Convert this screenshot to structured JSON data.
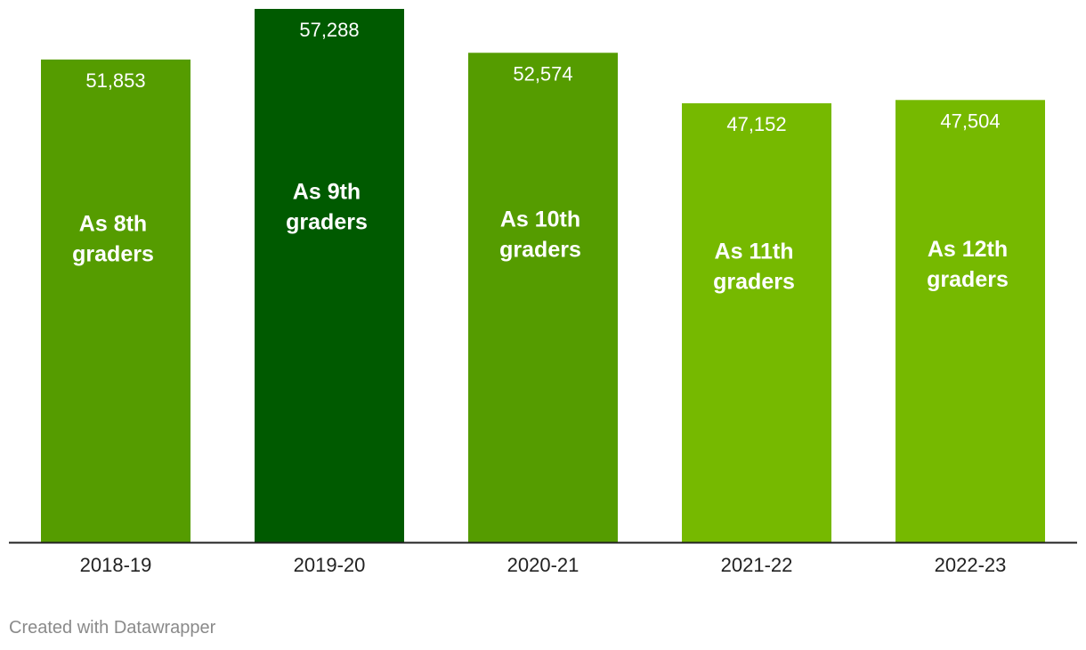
{
  "chart_data": {
    "type": "bar",
    "title": "",
    "xlabel": "",
    "ylabel": "",
    "categories": [
      "2018-19",
      "2019-20",
      "2020-21",
      "2021-22",
      "2022-23"
    ],
    "values": [
      51853,
      57288,
      52574,
      47152,
      47504
    ],
    "value_labels": [
      "51,853",
      "57,288",
      "52,574",
      "47,152",
      "47,504"
    ],
    "annotations": [
      [
        "As 8th",
        "graders"
      ],
      [
        "As 9th",
        "graders"
      ],
      [
        "As 10th",
        "graders"
      ],
      [
        "As 11th",
        "graders"
      ],
      [
        "As 12th",
        "graders"
      ]
    ],
    "colors": [
      "#559c00",
      "#005a00",
      "#559c00",
      "#76b900",
      "#76b900"
    ],
    "ylim": [
      0,
      57288
    ],
    "grid": false,
    "legend": "none"
  },
  "footer": {
    "credit": "Created with Datawrapper"
  }
}
